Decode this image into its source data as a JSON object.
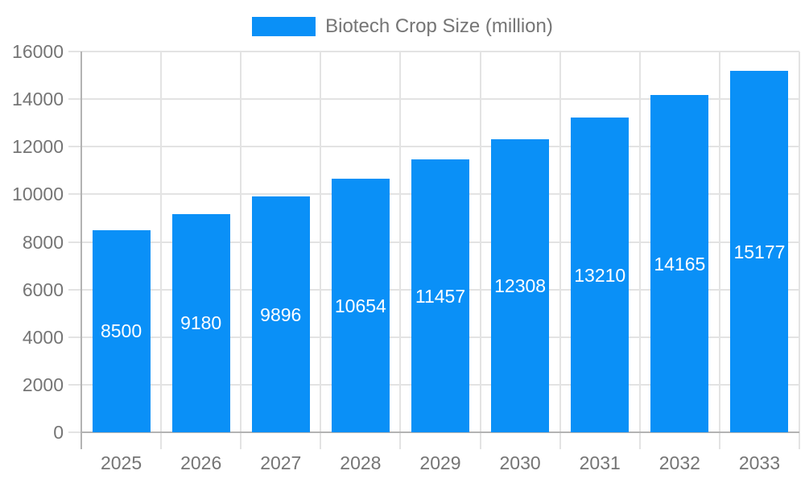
{
  "chart_data": {
    "type": "bar",
    "legend": {
      "label": "Biotech Crop Size (million)",
      "position": "top"
    },
    "categories": [
      "2025",
      "2026",
      "2027",
      "2028",
      "2029",
      "2030",
      "2031",
      "2032",
      "2033"
    ],
    "series": [
      {
        "name": "Biotech Crop Size (million)",
        "values": [
          8500,
          9180,
          9896,
          10654,
          11457,
          12308,
          13210,
          14165,
          15177
        ]
      }
    ],
    "title": "",
    "xlabel": "",
    "ylabel": "",
    "ylim": [
      0,
      16000
    ],
    "yticks": [
      0,
      2000,
      4000,
      6000,
      8000,
      10000,
      12000,
      14000,
      16000
    ],
    "grid": true,
    "bar_labels_inside": true,
    "colors": {
      "bar": "#0a90f7",
      "bar_label_text": "#ffffff",
      "axis_text": "#757575",
      "legend_text": "#757575",
      "gridline": "#e3e3e3",
      "axis_line": "#b3b3b3",
      "background": "#ffffff"
    }
  }
}
